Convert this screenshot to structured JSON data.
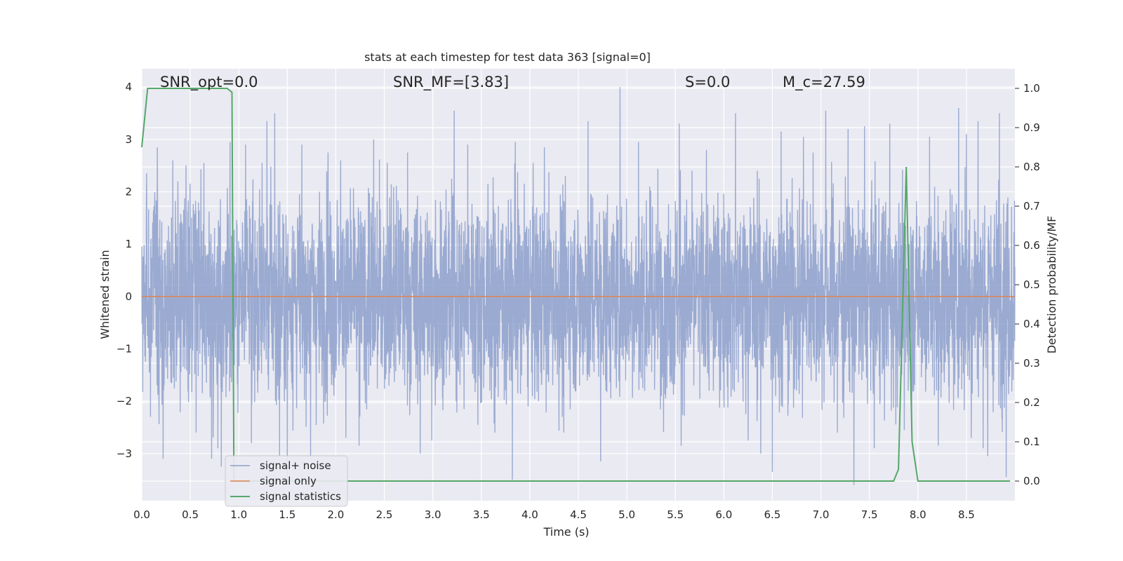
{
  "chart_data": {
    "type": "line",
    "title": "stats at each timestep for test data 363 [signal=0]",
    "xlabel": "Time (s)",
    "ylabel_left": "Whitened strain",
    "ylabel_right": "Detection probability/MF",
    "xlim": [
      0.0,
      9.0
    ],
    "ylim_left": [
      -3.9,
      4.35
    ],
    "ylim_right": [
      -0.05,
      1.05
    ],
    "grid": true,
    "legend_placement": "lower-left",
    "x_ticks": [
      "0.0",
      "0.5",
      "1.0",
      "1.5",
      "2.0",
      "2.5",
      "3.0",
      "3.5",
      "4.0",
      "4.5",
      "5.0",
      "5.5",
      "6.0",
      "6.5",
      "7.0",
      "7.5",
      "8.0",
      "8.5"
    ],
    "x_tick_values": [
      0.0,
      0.5,
      1.0,
      1.5,
      2.0,
      2.5,
      3.0,
      3.5,
      4.0,
      4.5,
      5.0,
      5.5,
      6.0,
      6.5,
      7.0,
      7.5,
      8.0,
      8.5
    ],
    "y_left_ticks": [
      "−3",
      "−2",
      "−1",
      "0",
      "1",
      "2",
      "3",
      "4"
    ],
    "y_left_tick_values": [
      -3,
      -2,
      -1,
      0,
      1,
      2,
      3,
      4
    ],
    "y_right_ticks": [
      "0.0",
      "0.1",
      "0.2",
      "0.3",
      "0.4",
      "0.5",
      "0.6",
      "0.7",
      "0.8",
      "0.9",
      "1.0"
    ],
    "y_right_tick_values": [
      0.0,
      0.1,
      0.2,
      0.3,
      0.4,
      0.5,
      0.6,
      0.7,
      0.8,
      0.9,
      1.0
    ],
    "annotations": [
      {
        "id": "snr-opt",
        "text": "SNR_opt=0.0"
      },
      {
        "id": "snr-mf",
        "text": "SNR_MF=[3.83]"
      },
      {
        "id": "s-value",
        "text": "S=0.0"
      },
      {
        "id": "mc-value",
        "text": "M_c=27.59"
      }
    ],
    "series": [
      {
        "name": "signal+ noise",
        "axis": "left",
        "color": "#8c9fcb",
        "style": "noise",
        "sample_rate": 500,
        "envelope_sigma": 0.95,
        "peaks": [
          {
            "x": 0.05,
            "y": 2.35
          },
          {
            "x": 0.09,
            "y": -2.3
          },
          {
            "x": 0.16,
            "y": 2.85
          },
          {
            "x": 0.22,
            "y": -3.1
          },
          {
            "x": 0.32,
            "y": 2.6
          },
          {
            "x": 0.56,
            "y": -2.6
          },
          {
            "x": 0.64,
            "y": 2.55
          },
          {
            "x": 0.72,
            "y": -3.1
          },
          {
            "x": 0.82,
            "y": -3.25
          },
          {
            "x": 0.91,
            "y": 2.95
          },
          {
            "x": 1.07,
            "y": 2.9
          },
          {
            "x": 1.13,
            "y": -2.8
          },
          {
            "x": 1.24,
            "y": 2.55
          },
          {
            "x": 1.29,
            "y": 3.35
          },
          {
            "x": 1.37,
            "y": 3.5
          },
          {
            "x": 1.42,
            "y": -3.05
          },
          {
            "x": 1.5,
            "y": -3.6
          },
          {
            "x": 1.74,
            "y": 3.78
          },
          {
            "x": 1.74,
            "y": -3.05
          },
          {
            "x": 1.92,
            "y": 2.75
          },
          {
            "x": 2.05,
            "y": 2.6
          },
          {
            "x": 2.24,
            "y": -2.85
          },
          {
            "x": 2.39,
            "y": 3.0
          },
          {
            "x": 2.53,
            "y": 2.55
          },
          {
            "x": 2.74,
            "y": 2.75
          },
          {
            "x": 2.87,
            "y": -3.0
          },
          {
            "x": 2.99,
            "y": -2.75
          },
          {
            "x": 3.22,
            "y": 3.55
          },
          {
            "x": 3.36,
            "y": 2.9
          },
          {
            "x": 3.64,
            "y": -2.6
          },
          {
            "x": 3.82,
            "y": -3.5
          },
          {
            "x": 3.85,
            "y": 2.95
          },
          {
            "x": 4.15,
            "y": 2.85
          },
          {
            "x": 4.35,
            "y": -2.6
          },
          {
            "x": 4.6,
            "y": 3.35
          },
          {
            "x": 4.73,
            "y": -3.15
          },
          {
            "x": 4.93,
            "y": 4.0
          },
          {
            "x": 5.12,
            "y": 2.95
          },
          {
            "x": 5.54,
            "y": 3.3
          },
          {
            "x": 5.56,
            "y": -2.85
          },
          {
            "x": 5.82,
            "y": 2.8
          },
          {
            "x": 6.12,
            "y": 3.5
          },
          {
            "x": 6.25,
            "y": -2.75
          },
          {
            "x": 6.38,
            "y": -3.0
          },
          {
            "x": 6.5,
            "y": -3.35
          },
          {
            "x": 6.59,
            "y": 3.15
          },
          {
            "x": 6.82,
            "y": 3.05
          },
          {
            "x": 6.92,
            "y": 2.75
          },
          {
            "x": 7.05,
            "y": 3.55
          },
          {
            "x": 7.17,
            "y": -2.6
          },
          {
            "x": 7.28,
            "y": 3.2
          },
          {
            "x": 7.34,
            "y": -3.6
          },
          {
            "x": 7.45,
            "y": 3.25
          },
          {
            "x": 7.55,
            "y": -2.9
          },
          {
            "x": 7.71,
            "y": 3.3
          },
          {
            "x": 7.86,
            "y": -2.55
          },
          {
            "x": 8.12,
            "y": 3.05
          },
          {
            "x": 8.21,
            "y": -2.85
          },
          {
            "x": 8.42,
            "y": 3.6
          },
          {
            "x": 8.5,
            "y": 3.1
          },
          {
            "x": 8.55,
            "y": -2.7
          },
          {
            "x": 8.62,
            "y": 3.35
          },
          {
            "x": 8.72,
            "y": -3.05
          },
          {
            "x": 8.84,
            "y": 3.5
          },
          {
            "x": 8.91,
            "y": -3.45
          }
        ]
      },
      {
        "name": "signal only",
        "axis": "left",
        "color": "#dd8452",
        "points": [
          [
            0.0,
            0.0
          ],
          [
            9.0,
            0.0
          ]
        ]
      },
      {
        "name": "signal statistics",
        "axis": "right",
        "color": "#55a868",
        "points": [
          [
            0.0,
            0.85
          ],
          [
            0.06,
            1.0
          ],
          [
            0.1,
            1.0
          ],
          [
            0.88,
            1.0
          ],
          [
            0.93,
            0.99
          ],
          [
            0.95,
            0.0
          ],
          [
            7.75,
            0.0
          ],
          [
            7.8,
            0.03
          ],
          [
            7.88,
            0.8
          ],
          [
            7.94,
            0.1
          ],
          [
            8.0,
            0.0
          ],
          [
            8.95,
            0.0
          ]
        ]
      }
    ]
  },
  "colors": {
    "plot_background": "#eaeaf2",
    "grid": "#ffffff",
    "legend_background": "#eaeaf2",
    "legend_border": "#cccccc"
  }
}
